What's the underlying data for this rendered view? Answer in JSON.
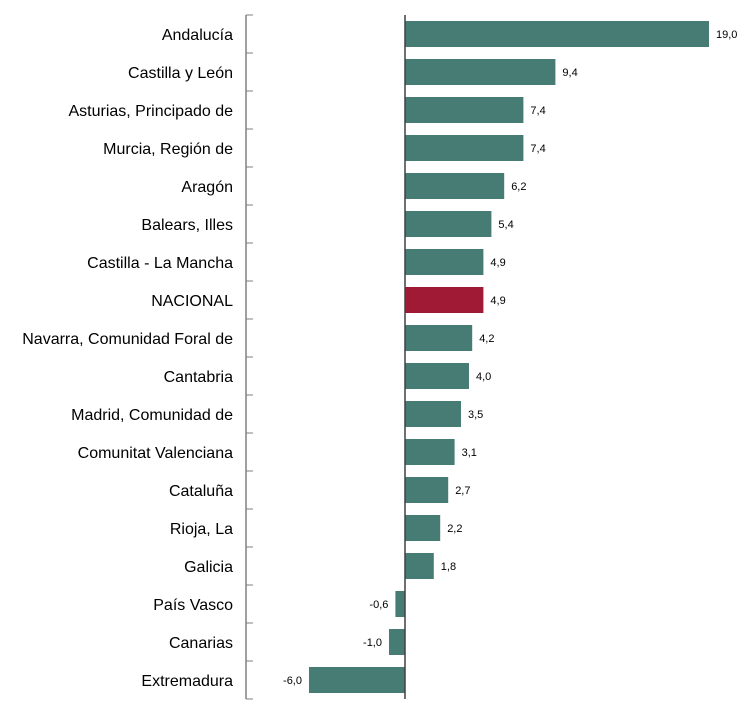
{
  "chart_data": {
    "type": "bar",
    "orientation": "horizontal",
    "categories": [
      "Andalucía",
      "Castilla y León",
      "Asturias, Principado de",
      "Murcia, Región de",
      "Aragón",
      "Balears, Illes",
      "Castilla - La Mancha",
      "NACIONAL",
      "Navarra, Comunidad Foral de",
      "Cantabria",
      "Madrid, Comunidad de",
      "Comunitat Valenciana",
      "Cataluña",
      "Rioja, La",
      "Galicia",
      "País Vasco",
      "Canarias",
      "Extremadura"
    ],
    "values": [
      19.0,
      9.4,
      7.4,
      7.4,
      6.2,
      5.4,
      4.9,
      4.9,
      4.2,
      4.0,
      3.5,
      3.1,
      2.7,
      2.2,
      1.8,
      -0.6,
      -1.0,
      -6.0
    ],
    "value_labels": [
      "19,0",
      "9,4",
      "7,4",
      "7,4",
      "6,2",
      "5,4",
      "4,9",
      "4,9",
      "4,2",
      "4,0",
      "3,5",
      "3,1",
      "2,7",
      "2,2",
      "1,8",
      "-0,6",
      "-1,0",
      "-6,0"
    ],
    "highlight_category": "NACIONAL",
    "xlim": [
      -6.0,
      19.0
    ],
    "grid": false,
    "legend": "none",
    "colors": {
      "bar": "#467c73",
      "highlight": "#a11a35",
      "axis": "#808080",
      "zero_line": "#404040"
    }
  }
}
